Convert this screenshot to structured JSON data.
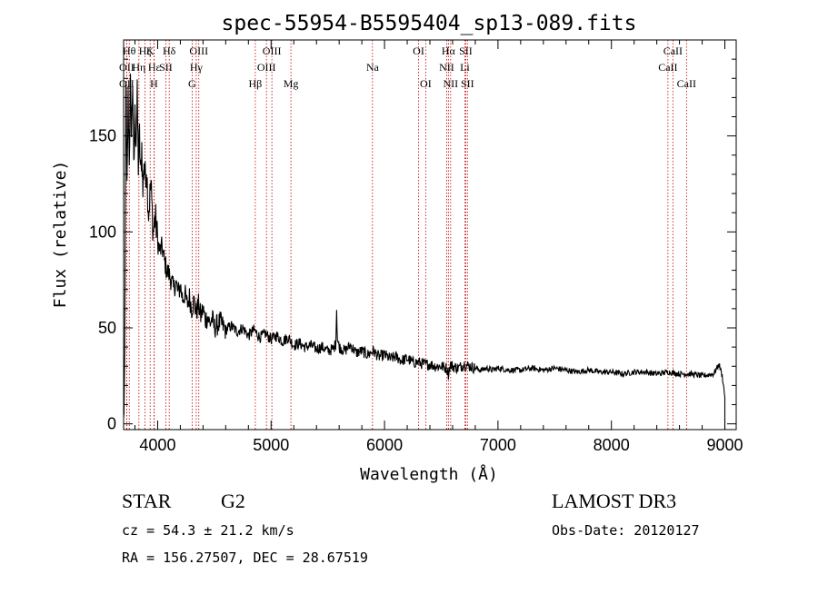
{
  "chart_data": {
    "type": "line",
    "title": "spec-55954-B5595404_sp13-089.fits",
    "xlabel": "Wavelength (Å)",
    "ylabel": "Flux (relative)",
    "xlim": [
      3700,
      9100
    ],
    "ylim": [
      -3,
      200
    ],
    "x_ticks": [
      4000,
      5000,
      6000,
      7000,
      8000,
      9000
    ],
    "y_ticks": [
      0,
      50,
      100,
      150
    ],
    "series": [
      {
        "name": "flux",
        "x": [
          3700,
          3710,
          3720,
          3730,
          3740,
          3750,
          3760,
          3770,
          3780,
          3790,
          3800,
          3810,
          3820,
          3830,
          3840,
          3850,
          3860,
          3870,
          3880,
          3890,
          3900,
          3920,
          3940,
          3960,
          3980,
          4000,
          4020,
          4040,
          4060,
          4080,
          4100,
          4120,
          4140,
          4160,
          4180,
          4200,
          4220,
          4240,
          4260,
          4280,
          4300,
          4320,
          4340,
          4360,
          4380,
          4400,
          4420,
          4440,
          4460,
          4480,
          4500,
          4550,
          4600,
          4650,
          4700,
          4750,
          4800,
          4850,
          4900,
          4950,
          5000,
          5050,
          5100,
          5150,
          5200,
          5250,
          5300,
          5350,
          5400,
          5450,
          5500,
          5550,
          5570,
          5578,
          5585,
          5600,
          5650,
          5700,
          5750,
          5800,
          5850,
          5900,
          5950,
          6000,
          6050,
          6100,
          6150,
          6200,
          6250,
          6300,
          6350,
          6400,
          6450,
          6500,
          6550,
          6563,
          6580,
          6600,
          6650,
          6700,
          6750,
          6800,
          6850,
          6900,
          6950,
          7000,
          7100,
          7200,
          7300,
          7400,
          7500,
          7600,
          7700,
          7800,
          7900,
          8000,
          8100,
          8200,
          8300,
          8400,
          8500,
          8600,
          8700,
          8800,
          8900,
          8950,
          8980,
          9000
        ],
        "y": [
          0,
          28,
          185,
          120,
          170,
          140,
          175,
          150,
          180,
          130,
          160,
          148,
          170,
          135,
          150,
          128,
          145,
          120,
          138,
          128,
          135,
          110,
          125,
          100,
          108,
          95,
          90,
          92,
          85,
          80,
          78,
          75,
          70,
          74,
          68,
          72,
          65,
          68,
          62,
          66,
          60,
          64,
          58,
          62,
          56,
          60,
          54,
          56,
          52,
          55,
          50,
          53,
          49,
          51,
          48,
          50,
          46,
          49,
          45,
          47,
          44,
          46,
          43,
          45,
          41,
          42,
          40,
          41,
          39,
          40,
          38,
          39,
          42,
          60,
          44,
          40,
          38,
          41,
          37,
          38,
          36,
          38,
          35,
          36,
          34,
          35,
          33,
          34,
          32,
          32,
          31,
          31,
          30,
          30,
          29,
          26,
          31,
          30,
          29,
          31,
          30,
          29,
          28,
          29,
          28,
          29,
          28,
          28,
          29,
          28,
          29,
          28,
          27,
          28,
          27,
          27,
          26,
          27,
          27,
          26,
          27,
          26,
          26,
          25,
          26,
          31,
          24,
          14
        ]
      }
    ],
    "lines": [
      {
        "name": "OII",
        "x": 3727,
        "row": 2
      },
      {
        "name": "Hθ",
        "x": 3750,
        "row": 1
      },
      {
        "name": "OII",
        "x": 3727,
        "row": 3
      },
      {
        "name": "Hη",
        "x": 3835,
        "row": 2
      },
      {
        "name": "Hζ",
        "x": 3889,
        "row": 1
      },
      {
        "name": "K",
        "x": 3934,
        "row": 1
      },
      {
        "name": "Hε",
        "x": 3970,
        "row": 2
      },
      {
        "name": "H",
        "x": 3968,
        "row": 3
      },
      {
        "name": "SII",
        "x": 4072,
        "row": 2
      },
      {
        "name": "Hδ",
        "x": 4102,
        "row": 1
      },
      {
        "name": "OIII",
        "x": 4363,
        "row": 1
      },
      {
        "name": "Hγ",
        "x": 4340,
        "row": 2
      },
      {
        "name": "G",
        "x": 4304,
        "row": 3
      },
      {
        "name": "Hβ",
        "x": 4861,
        "row": 3
      },
      {
        "name": "OIII",
        "x": 5007,
        "row": 1
      },
      {
        "name": "OIII",
        "x": 4959,
        "row": 2
      },
      {
        "name": "Mg",
        "x": 5175,
        "row": 3
      },
      {
        "name": "Na",
        "x": 5894,
        "row": 2
      },
      {
        "name": "OI",
        "x": 6300,
        "row": 1
      },
      {
        "name": "OI",
        "x": 6363,
        "row": 3
      },
      {
        "name": "Hα",
        "x": 6563,
        "row": 1
      },
      {
        "name": "NII",
        "x": 6548,
        "row": 2
      },
      {
        "name": "NII",
        "x": 6583,
        "row": 3
      },
      {
        "name": "SII",
        "x": 6716,
        "row": 1
      },
      {
        "name": "Li",
        "x": 6708,
        "row": 2
      },
      {
        "name": "SII",
        "x": 6731,
        "row": 3
      },
      {
        "name": "CaII",
        "x": 8542,
        "row": 1
      },
      {
        "name": "CaII",
        "x": 8498,
        "row": 2
      },
      {
        "name": "CaII",
        "x": 8662,
        "row": 3
      }
    ]
  },
  "info": {
    "object_class": "STAR",
    "subclass": "G2",
    "survey": "LAMOST DR3",
    "cz": "cz = 54.3 ± 21.2 km/s",
    "obs_date": "Obs-Date: 20120127",
    "coords": "RA = 156.27507, DEC =  28.67519"
  }
}
